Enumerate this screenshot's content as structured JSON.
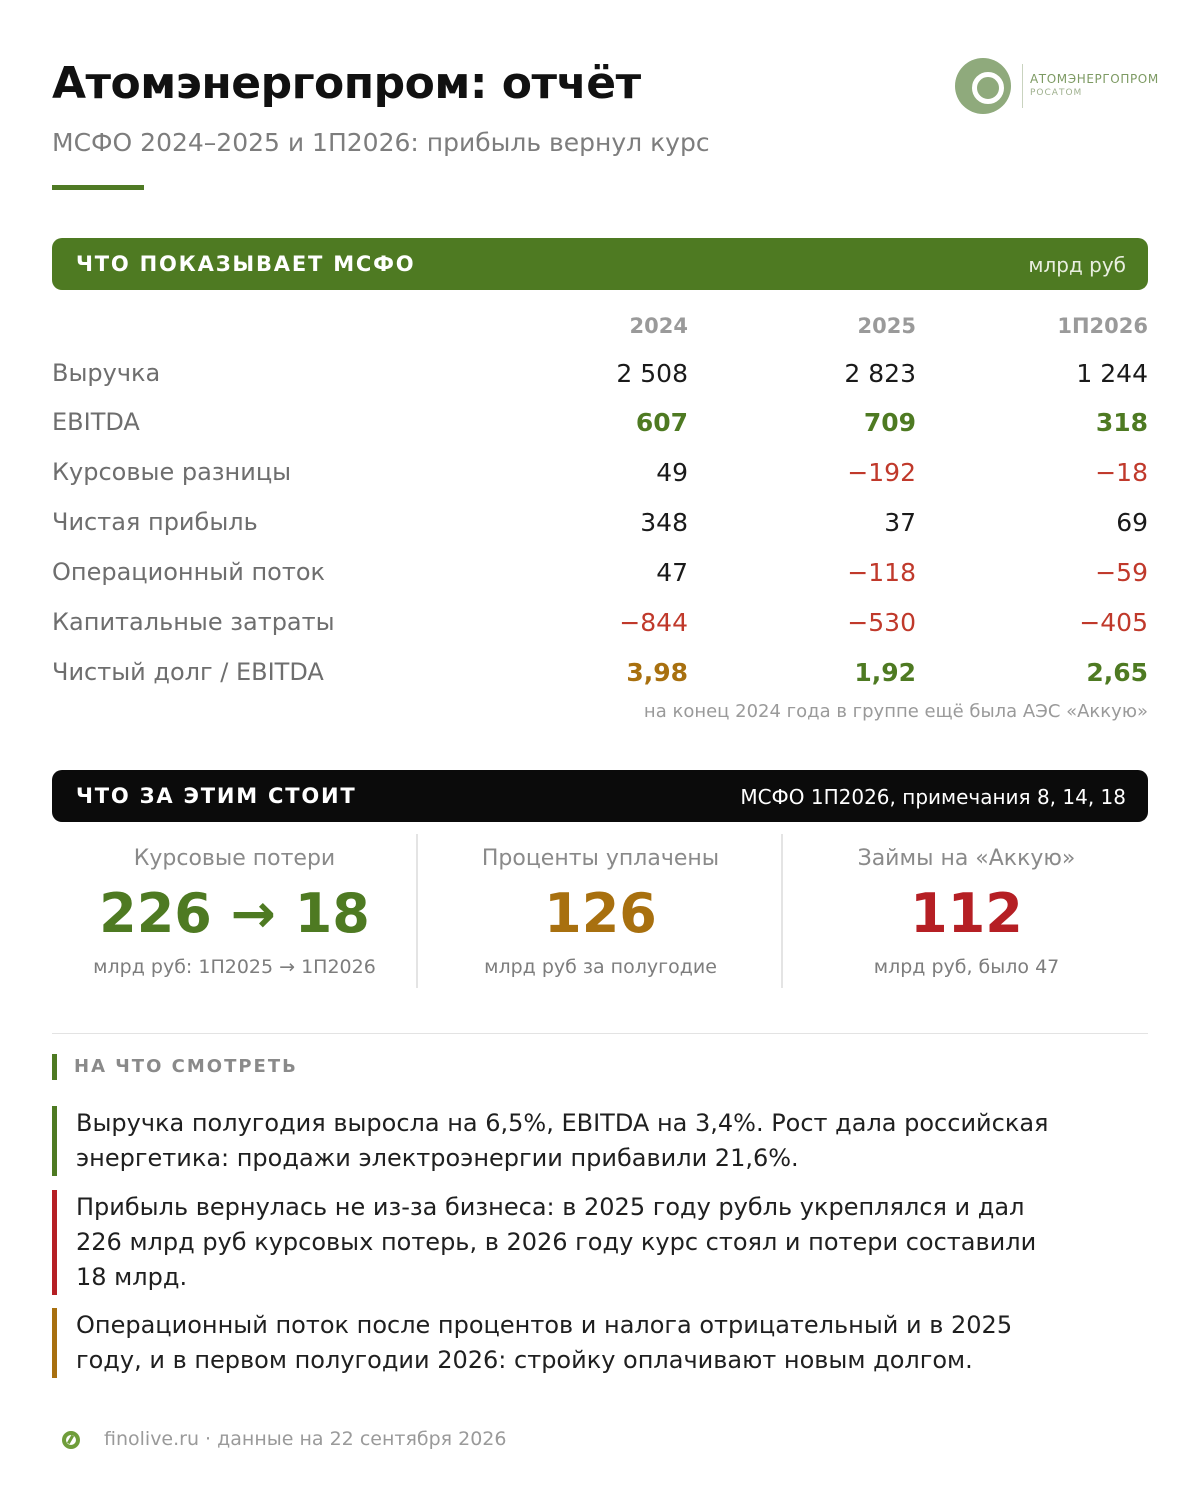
{
  "header": {
    "title": "Атомэнергопром: отчёт",
    "subtitle": "МСФО 2024–2025 и 1П2026: прибыль вернул курс"
  },
  "logo": {
    "name": "АТОМЭНЕРГОПРОМ",
    "sub": "РОСАТОМ",
    "icon": "rosatom-logo-icon",
    "color": "#8faa7c"
  },
  "section_ifrs": {
    "title": "ЧТО ПОКАЗЫВАЕТ МСФО",
    "unit": "млрд руб",
    "columns": [
      "2024",
      "2025",
      "1П2026"
    ],
    "rows": [
      {
        "label": "Выручка",
        "values": [
          "2 508",
          "2 823",
          "1 244"
        ]
      },
      {
        "label": "EBITDA",
        "values": [
          "607",
          "709",
          "318"
        ]
      },
      {
        "label": "Курсовые разницы",
        "values": [
          "49",
          "−192",
          "−18"
        ]
      },
      {
        "label": "Чистая прибыль",
        "values": [
          "348",
          "37",
          "69"
        ]
      },
      {
        "label": "Операционный поток",
        "values": [
          "47",
          "−118",
          "−59"
        ]
      },
      {
        "label": "Капитальные затраты",
        "values": [
          "−844",
          "−530",
          "−405"
        ]
      },
      {
        "label": "Чистый долг / EBITDA",
        "values": [
          "3,98",
          "1,92",
          "2,65"
        ]
      }
    ],
    "footnote": "на конец 2024 года в группе ещё была АЭС «Аккую»"
  },
  "section_behind": {
    "title": "ЧТО ЗА ЭТИМ СТОИТ",
    "source": "МСФО 1П2026, примечания 8, 14, 18",
    "kpis": [
      {
        "label": "Курсовые потери",
        "value": "226 → 18",
        "sub": "млрд руб: 1П2025 → 1П2026",
        "color": "#4e7a22"
      },
      {
        "label": "Проценты уплачены",
        "value": "126",
        "sub": "млрд руб за полугодие",
        "color": "#a8700f"
      },
      {
        "label": "Займы на «Аккую»",
        "value": "112",
        "sub": "млрд руб, было 47",
        "color": "#b51f24"
      }
    ]
  },
  "section_watch": {
    "title": "НА ЧТО СМОТРЕТЬ",
    "points": [
      {
        "text": "Выручка полугодия выросла на 6,5%, EBITDA на 3,4%. Рост дала российская энергетика: продажи электроэнергии прибавили 21,6%.",
        "color": "#4e7a22"
      },
      {
        "text": "Прибыль вернулась не из-за бизнеса: в 2025 году рубль укреплялся и дал 226 млрд руб курсовых потерь, в 2026 году курс стоял и потери составили 18 млрд.",
        "color": "#b51f24"
      },
      {
        "text": "Операционный поток после процентов и налога отрицательный и в 2025 году, и в первом полугодии 2026: стройку оплачивают новым долгом.",
        "color": "#a8700f"
      }
    ]
  },
  "footer": {
    "text": "finolive.ru · данные на 22 сентября 2026",
    "icon": "finolive-logo-icon"
  },
  "colors": {
    "accent_green": "#4e7a22",
    "negative_red": "#c0392b",
    "amber": "#a8700f"
  }
}
